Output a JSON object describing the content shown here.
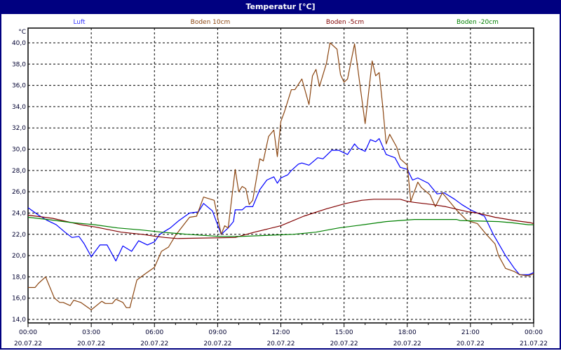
{
  "window": {
    "title": "Temperatur [°C]"
  },
  "chart_data": {
    "type": "line",
    "title": "Temperatur [°C]",
    "ylabel": "°C",
    "ylim": [
      14,
      40
    ],
    "yticks": [
      "14,0",
      "16,0",
      "18,0",
      "20,0",
      "22,0",
      "24,0",
      "26,0",
      "28,0",
      "30,0",
      "32,0",
      "34,0",
      "36,0",
      "38,0",
      "40,0"
    ],
    "xlim": [
      "20.07.22 00:00",
      "21.07.22 00:00"
    ],
    "xticks": [
      {
        "time": "00:00",
        "date": "20.07.22"
      },
      {
        "time": "03:00",
        "date": "20.07.22"
      },
      {
        "time": "06:00",
        "date": "20.07.22"
      },
      {
        "time": "09:00",
        "date": "20.07.22"
      },
      {
        "time": "12:00",
        "date": "20.07.22"
      },
      {
        "time": "15:00",
        "date": "20.07.22"
      },
      {
        "time": "18:00",
        "date": "20.07.22"
      },
      {
        "time": "21:00",
        "date": "20.07.22"
      },
      {
        "time": "00:00",
        "date": "21.07.22"
      }
    ],
    "grid": true,
    "legend_position": "top",
    "series": [
      {
        "name": "Luft",
        "color": "#0000ff",
        "legend_color": "#3333ff",
        "points": [
          [
            "00:00",
            24.5
          ],
          [
            "00:30",
            23.8
          ],
          [
            "00:55",
            23.3
          ],
          [
            "01:20",
            22.9
          ],
          [
            "01:45",
            22.2
          ],
          [
            "02:05",
            21.7
          ],
          [
            "02:25",
            21.8
          ],
          [
            "02:40",
            21.1
          ],
          [
            "03:00",
            19.9
          ],
          [
            "03:25",
            21.0
          ],
          [
            "03:45",
            21.0
          ],
          [
            "04:10",
            19.5
          ],
          [
            "04:30",
            20.9
          ],
          [
            "04:55",
            20.4
          ],
          [
            "05:15",
            21.4
          ],
          [
            "05:40",
            21.0
          ],
          [
            "06:00",
            21.3
          ],
          [
            "06:15",
            22.0
          ],
          [
            "06:45",
            22.6
          ],
          [
            "07:10",
            23.3
          ],
          [
            "07:40",
            24.0
          ],
          [
            "08:05",
            24.1
          ],
          [
            "08:20",
            24.9
          ],
          [
            "08:45",
            24.2
          ],
          [
            "09:10",
            22.0
          ],
          [
            "09:30",
            22.6
          ],
          [
            "09:45",
            23.2
          ],
          [
            "09:50",
            24.3
          ],
          [
            "10:10",
            24.3
          ],
          [
            "10:20",
            24.6
          ],
          [
            "10:40",
            24.6
          ],
          [
            "11:00",
            26.2
          ],
          [
            "11:20",
            27.1
          ],
          [
            "11:40",
            27.4
          ],
          [
            "11:50",
            26.8
          ],
          [
            "12:00",
            27.3
          ],
          [
            "12:20",
            27.6
          ],
          [
            "12:30",
            28.0
          ],
          [
            "12:50",
            28.6
          ],
          [
            "13:00",
            28.7
          ],
          [
            "13:20",
            28.5
          ],
          [
            "13:45",
            29.2
          ],
          [
            "14:00",
            29.1
          ],
          [
            "14:25",
            29.9
          ],
          [
            "14:45",
            29.9
          ],
          [
            "15:10",
            29.5
          ],
          [
            "15:30",
            30.5
          ],
          [
            "15:40",
            30.1
          ],
          [
            "16:00",
            29.8
          ],
          [
            "16:15",
            30.9
          ],
          [
            "16:30",
            30.7
          ],
          [
            "16:40",
            31.0
          ],
          [
            "17:00",
            29.5
          ],
          [
            "17:25",
            29.2
          ],
          [
            "17:40",
            28.3
          ],
          [
            "18:00",
            28.1
          ],
          [
            "18:15",
            27.1
          ],
          [
            "18:30",
            27.3
          ],
          [
            "19:00",
            26.8
          ],
          [
            "19:25",
            25.8
          ],
          [
            "19:45",
            25.9
          ],
          [
            "20:15",
            25.3
          ],
          [
            "20:35",
            24.8
          ],
          [
            "21:00",
            24.3
          ],
          [
            "21:40",
            23.7
          ],
          [
            "22:05",
            22.0
          ],
          [
            "22:40",
            20.0
          ],
          [
            "23:05",
            18.8
          ],
          [
            "23:20",
            18.2
          ],
          [
            "23:45",
            18.2
          ],
          [
            "24:00",
            18.4
          ]
        ]
      },
      {
        "name": "Boden 10cm",
        "color": "#8b4510",
        "legend_color": "#8b4510",
        "points": [
          [
            "00:00",
            17.0
          ],
          [
            "00:20",
            17.0
          ],
          [
            "00:30",
            17.4
          ],
          [
            "00:50",
            18.0
          ],
          [
            "01:15",
            16.0
          ],
          [
            "01:30",
            15.6
          ],
          [
            "01:40",
            15.6
          ],
          [
            "02:00",
            15.3
          ],
          [
            "02:10",
            15.8
          ],
          [
            "02:30",
            15.6
          ],
          [
            "03:00",
            14.9
          ],
          [
            "03:30",
            15.7
          ],
          [
            "03:40",
            15.5
          ],
          [
            "04:00",
            15.5
          ],
          [
            "04:10",
            15.9
          ],
          [
            "04:30",
            15.6
          ],
          [
            "04:40",
            15.1
          ],
          [
            "04:50",
            15.1
          ],
          [
            "05:10",
            17.7
          ],
          [
            "05:30",
            18.2
          ],
          [
            "06:00",
            18.9
          ],
          [
            "06:20",
            20.4
          ],
          [
            "06:40",
            20.8
          ],
          [
            "07:00",
            21.9
          ],
          [
            "07:40",
            23.6
          ],
          [
            "08:00",
            23.7
          ],
          [
            "08:20",
            25.5
          ],
          [
            "08:50",
            25.2
          ],
          [
            "09:10",
            22.0
          ],
          [
            "09:20",
            22.8
          ],
          [
            "09:30",
            22.6
          ],
          [
            "09:50",
            28.1
          ],
          [
            "10:00",
            26.0
          ],
          [
            "10:10",
            26.5
          ],
          [
            "10:20",
            26.3
          ],
          [
            "10:30",
            24.8
          ],
          [
            "10:40",
            25.2
          ],
          [
            "11:00",
            29.1
          ],
          [
            "11:10",
            28.9
          ],
          [
            "11:25",
            31.2
          ],
          [
            "11:40",
            31.8
          ],
          [
            "11:50",
            29.3
          ],
          [
            "12:00",
            32.6
          ],
          [
            "12:10",
            33.5
          ],
          [
            "12:30",
            35.6
          ],
          [
            "12:40",
            35.6
          ],
          [
            "13:00",
            36.6
          ],
          [
            "13:20",
            34.2
          ],
          [
            "13:30",
            36.9
          ],
          [
            "13:40",
            37.5
          ],
          [
            "13:50",
            35.9
          ],
          [
            "14:10",
            38.1
          ],
          [
            "14:20",
            40.0
          ],
          [
            "14:40",
            39.4
          ],
          [
            "14:50",
            37.0
          ],
          [
            "15:00",
            36.3
          ],
          [
            "15:10",
            36.6
          ],
          [
            "15:30",
            39.9
          ],
          [
            "15:45",
            36.1
          ],
          [
            "16:00",
            32.4
          ],
          [
            "16:20",
            38.3
          ],
          [
            "16:30",
            36.9
          ],
          [
            "16:40",
            37.2
          ],
          [
            "16:50",
            34.1
          ],
          [
            "17:00",
            30.5
          ],
          [
            "17:10",
            31.4
          ],
          [
            "17:30",
            30.2
          ],
          [
            "17:40",
            29.1
          ],
          [
            "18:00",
            28.5
          ],
          [
            "18:10",
            25.1
          ],
          [
            "18:30",
            26.9
          ],
          [
            "18:40",
            26.4
          ],
          [
            "19:05",
            25.7
          ],
          [
            "19:20",
            24.6
          ],
          [
            "19:40",
            25.9
          ],
          [
            "20:00",
            25.1
          ],
          [
            "20:20",
            24.3
          ],
          [
            "20:50",
            23.3
          ],
          [
            "21:20",
            23.0
          ],
          [
            "21:45",
            22.0
          ],
          [
            "22:10",
            21.1
          ],
          [
            "22:20",
            20.0
          ],
          [
            "22:40",
            18.8
          ],
          [
            "23:05",
            18.5
          ],
          [
            "23:20",
            18.2
          ],
          [
            "23:45",
            18.1
          ],
          [
            "24:00",
            18.3
          ]
        ]
      },
      {
        "name": "Boden -5cm",
        "color": "#800000",
        "legend_color": "#800000",
        "points": [
          [
            "00:00",
            23.8
          ],
          [
            "01:10",
            23.5
          ],
          [
            "02:30",
            22.9
          ],
          [
            "03:10",
            22.7
          ],
          [
            "04:25",
            22.2
          ],
          [
            "05:25",
            22.0
          ],
          [
            "06:05",
            21.8
          ],
          [
            "06:30",
            21.7
          ],
          [
            "07:05",
            21.6
          ],
          [
            "09:50",
            21.7
          ],
          [
            "10:45",
            22.2
          ],
          [
            "12:00",
            22.8
          ],
          [
            "13:05",
            23.7
          ],
          [
            "14:10",
            24.4
          ],
          [
            "15:05",
            24.9
          ],
          [
            "15:50",
            25.2
          ],
          [
            "16:25",
            25.3
          ],
          [
            "17:40",
            25.3
          ],
          [
            "18:00",
            25.1
          ],
          [
            "18:20",
            25.0
          ],
          [
            "19:10",
            24.8
          ],
          [
            "19:50",
            24.6
          ],
          [
            "20:55",
            24.1
          ],
          [
            "21:20",
            24.0
          ],
          [
            "22:10",
            23.6
          ],
          [
            "23:05",
            23.3
          ],
          [
            "23:50",
            23.1
          ],
          [
            "24:00",
            23.0
          ]
        ]
      },
      {
        "name": "Boden -20cm",
        "color": "#008000",
        "legend_color": "#008000",
        "points": [
          [
            "00:00",
            23.6
          ],
          [
            "00:55",
            23.4
          ],
          [
            "02:05",
            23.1
          ],
          [
            "03:10",
            22.9
          ],
          [
            "04:15",
            22.6
          ],
          [
            "05:25",
            22.4
          ],
          [
            "06:20",
            22.2
          ],
          [
            "07:35",
            22.0
          ],
          [
            "09:05",
            21.8
          ],
          [
            "10:05",
            21.8
          ],
          [
            "12:35",
            22.0
          ],
          [
            "13:40",
            22.2
          ],
          [
            "14:45",
            22.6
          ],
          [
            "15:55",
            22.9
          ],
          [
            "17:00",
            23.2
          ],
          [
            "18:20",
            23.4
          ],
          [
            "20:20",
            23.4
          ],
          [
            "20:30",
            23.3
          ],
          [
            "22:20",
            23.2
          ],
          [
            "22:55",
            23.1
          ],
          [
            "23:45",
            22.9
          ],
          [
            "24:00",
            22.9
          ]
        ]
      }
    ]
  }
}
